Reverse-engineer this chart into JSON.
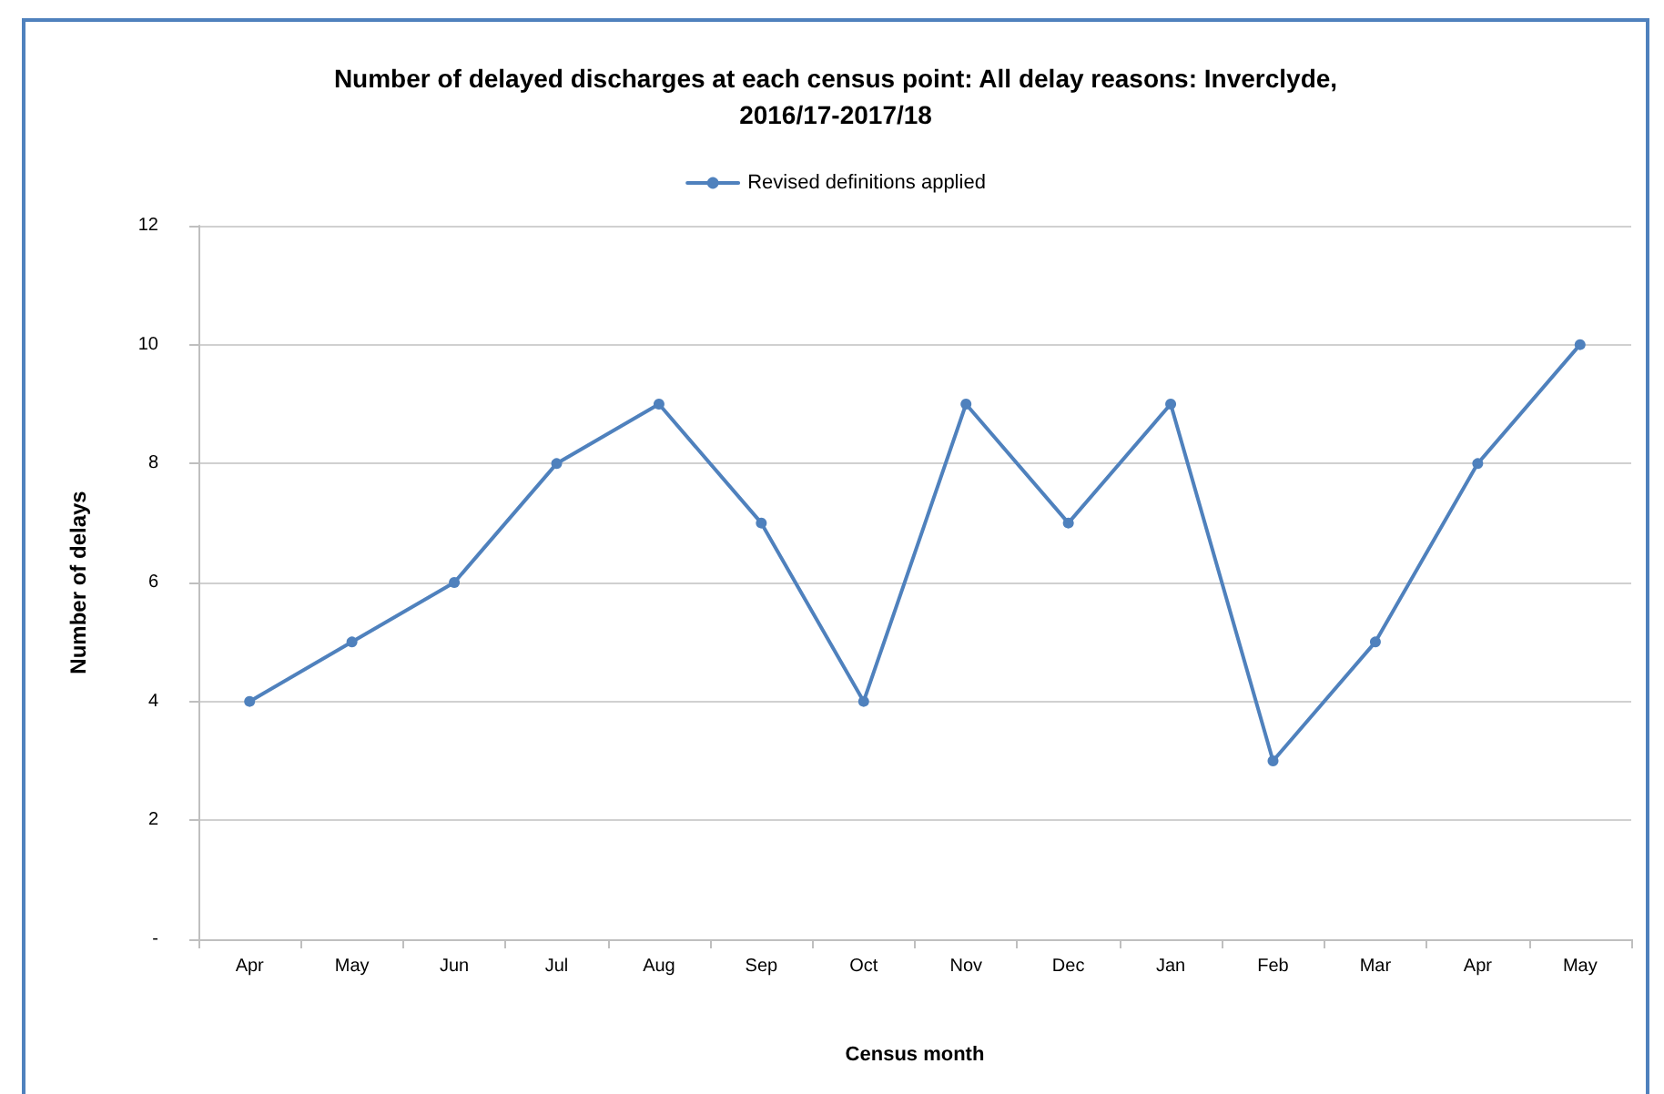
{
  "chart_data": {
    "type": "line",
    "title": "Number of delayed discharges at each census point: All delay reasons: Inverclyde,\n2016/17-2017/18",
    "xlabel": "Census month",
    "ylabel": "Number of delays",
    "categories": [
      "Apr",
      "May",
      "Jun",
      "Jul",
      "Aug",
      "Sep",
      "Oct",
      "Nov",
      "Dec",
      "Jan",
      "Feb",
      "Mar",
      "Apr",
      "May"
    ],
    "series": [
      {
        "name": "Revised definitions applied",
        "color": "#4f81bd",
        "values": [
          4,
          5,
          6,
          8,
          9,
          7,
          4,
          9,
          7,
          9,
          3,
          5,
          8,
          10
        ]
      }
    ],
    "ylim": [
      0,
      12
    ],
    "yticks": [
      {
        "value": 0,
        "label": "-"
      },
      2,
      4,
      6,
      8,
      10,
      12
    ],
    "grid": "y",
    "legend": "top",
    "marker": "circle",
    "line_style": "solid"
  }
}
